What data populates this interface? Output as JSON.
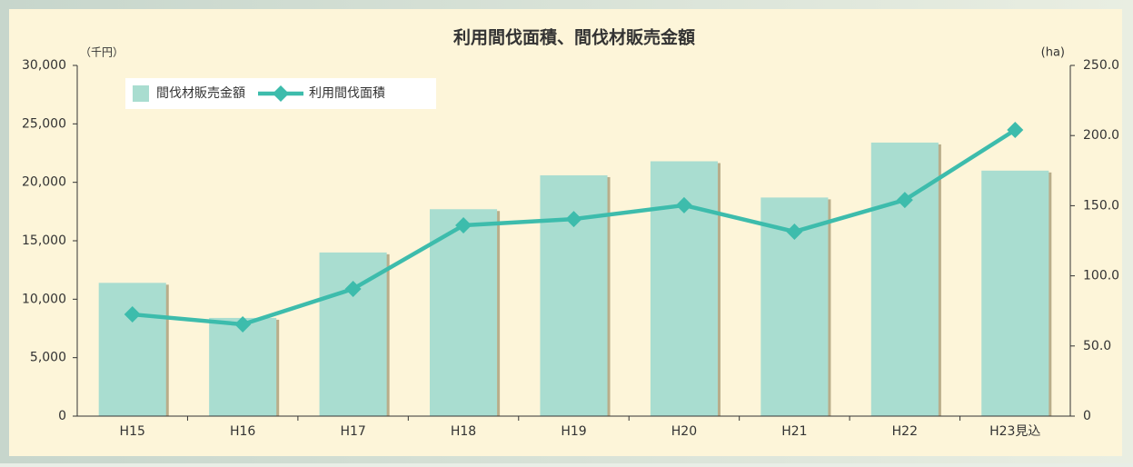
{
  "chart_data": {
    "type": "bar",
    "title": "利用間伐面積、間伐材販売金額",
    "y_label": "（千円）",
    "y2_label": "(ha)",
    "categories": [
      "H15",
      "H16",
      "H17",
      "H18",
      "H19",
      "H20",
      "H21",
      "H22",
      "H23見込"
    ],
    "series": [
      {
        "name": "間伐材販売金額",
        "type": "bar",
        "color": "#a9ddd0",
        "axis": "y",
        "values": [
          11400,
          8400,
          14000,
          17700,
          20600,
          21800,
          18700,
          23400,
          21000
        ]
      },
      {
        "name": "利用間伐面積",
        "type": "line",
        "color": "#3dbcac",
        "axis": "y2",
        "values": [
          72.5,
          65.4,
          90.7,
          136.0,
          140.5,
          150.3,
          131.5,
          154.1,
          204.0
        ]
      }
    ],
    "ylim": [
      0,
      30000
    ],
    "yticks": [
      0,
      {
        "value": 5000,
        "label": "5,000"
      },
      {
        "value": 10000,
        "label": "10,000"
      },
      {
        "value": 15000,
        "label": "15,000"
      },
      {
        "value": 20000,
        "label": "20,000"
      },
      {
        "value": 25000,
        "label": "25,000"
      },
      {
        "value": 30000,
        "label": "30,000"
      }
    ],
    "y2lim": [
      0,
      250
    ],
    "y2ticks": [
      0,
      {
        "value": 50,
        "label": "50.0"
      },
      {
        "value": 100,
        "label": "100.0"
      },
      {
        "value": 150,
        "label": "150.0"
      },
      {
        "value": 200,
        "label": "200.0"
      },
      {
        "value": 250,
        "label": "250.0"
      }
    ],
    "legend": "top-left"
  }
}
